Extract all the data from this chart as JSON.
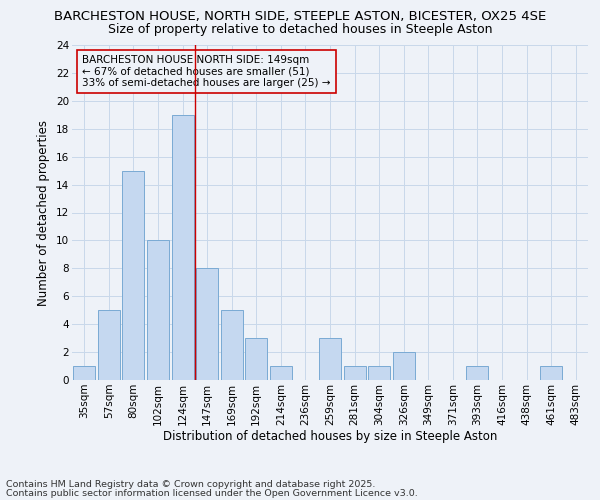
{
  "title_line1": "BARCHESTON HOUSE, NORTH SIDE, STEEPLE ASTON, BICESTER, OX25 4SE",
  "title_line2": "Size of property relative to detached houses in Steeple Aston",
  "xlabel": "Distribution of detached houses by size in Steeple Aston",
  "ylabel": "Number of detached properties",
  "categories": [
    "35sqm",
    "57sqm",
    "80sqm",
    "102sqm",
    "124sqm",
    "147sqm",
    "169sqm",
    "192sqm",
    "214sqm",
    "236sqm",
    "259sqm",
    "281sqm",
    "304sqm",
    "326sqm",
    "349sqm",
    "371sqm",
    "393sqm",
    "416sqm",
    "438sqm",
    "461sqm",
    "483sqm"
  ],
  "values": [
    1,
    5,
    15,
    10,
    19,
    8,
    5,
    3,
    1,
    0,
    3,
    1,
    1,
    2,
    0,
    0,
    1,
    0,
    0,
    1,
    0
  ],
  "bar_color": "#c5d8f0",
  "bar_edge_color": "#7aaad4",
  "vline_x": 4.5,
  "vline_color": "#cc0000",
  "ylim": [
    0,
    24
  ],
  "yticks": [
    0,
    2,
    4,
    6,
    8,
    10,
    12,
    14,
    16,
    18,
    20,
    22,
    24
  ],
  "annotation_text": "BARCHESTON HOUSE NORTH SIDE: 149sqm\n← 67% of detached houses are smaller (51)\n33% of semi-detached houses are larger (25) →",
  "footnote_line1": "Contains HM Land Registry data © Crown copyright and database right 2025.",
  "footnote_line2": "Contains public sector information licensed under the Open Government Licence v3.0.",
  "bg_color": "#eef2f8",
  "grid_color": "#c8d8ea",
  "title_fontsize": 9.5,
  "subtitle_fontsize": 9,
  "axis_label_fontsize": 8.5,
  "tick_fontsize": 7.5,
  "annotation_fontsize": 7.5,
  "footnote_fontsize": 6.8
}
